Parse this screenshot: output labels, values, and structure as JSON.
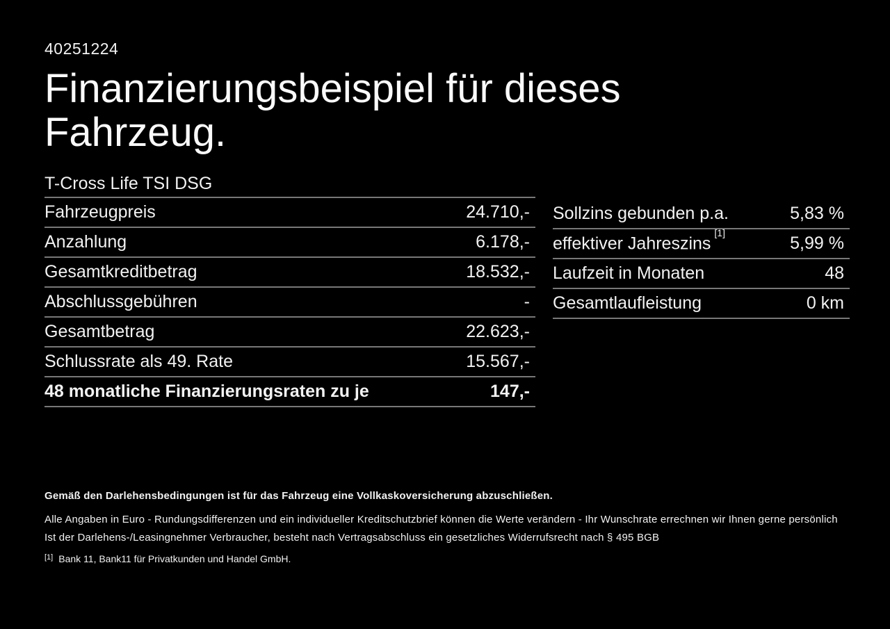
{
  "page": {
    "id_number": "40251224",
    "title_line1": "Finanzierungsbeispiel für dieses",
    "title_line2": "Fahrzeug.",
    "vehicle_model": "T-Cross Life TSI DSG"
  },
  "financing_table": {
    "rows": [
      {
        "label": "Fahrzeugpreis",
        "value": "24.710,-"
      },
      {
        "label": "Anzahlung",
        "value": "6.178,-"
      },
      {
        "label": "Gesamtkreditbetrag",
        "value": "18.532,-"
      },
      {
        "label": "Abschlussgebühren",
        "value": "-"
      },
      {
        "label": "Gesamtbetrag",
        "value": "22.623,-"
      },
      {
        "label": "Schlussrate als 49. Rate",
        "value": "15.567,-"
      },
      {
        "label": "48 monatliche Finanzierungsraten zu je",
        "value": "147,-"
      }
    ]
  },
  "conditions_table": {
    "rows": [
      {
        "label": "Sollzins gebunden p.a.",
        "value": "5,83 %"
      },
      {
        "label": "effektiver Jahreszins",
        "footnote_marker": "[1]",
        "value": "5,99 %"
      },
      {
        "label": "Laufzeit in Monaten",
        "value": "48"
      },
      {
        "label": "Gesamtlaufleistung",
        "value": "0 km"
      }
    ]
  },
  "footer": {
    "insurance_note": "Gemäß den Darlehensbedingungen ist für das Fahrzeug eine Vollkaskoversicherung abzuschließen.",
    "disclaimer_line1": "Alle Angaben in Euro - Rundungsdifferenzen und ein individueller Kreditschutzbrief können die Werte verändern - Ihr Wunschrate errechnen wir Ihnen gerne persönlich",
    "disclaimer_line2": "Ist der Darlehens-/Leasingnehmer Verbraucher, besteht nach Vertragsabschluss ein gesetzliches Widerrufsrecht nach § 495 BGB",
    "footnote_marker": "[1]",
    "footnote_text": "Bank 11, Bank11 für Privatkunden und Handel GmbH."
  },
  "colors": {
    "background": "#000000",
    "text": "#f2f2f2",
    "divider": "#787878"
  }
}
